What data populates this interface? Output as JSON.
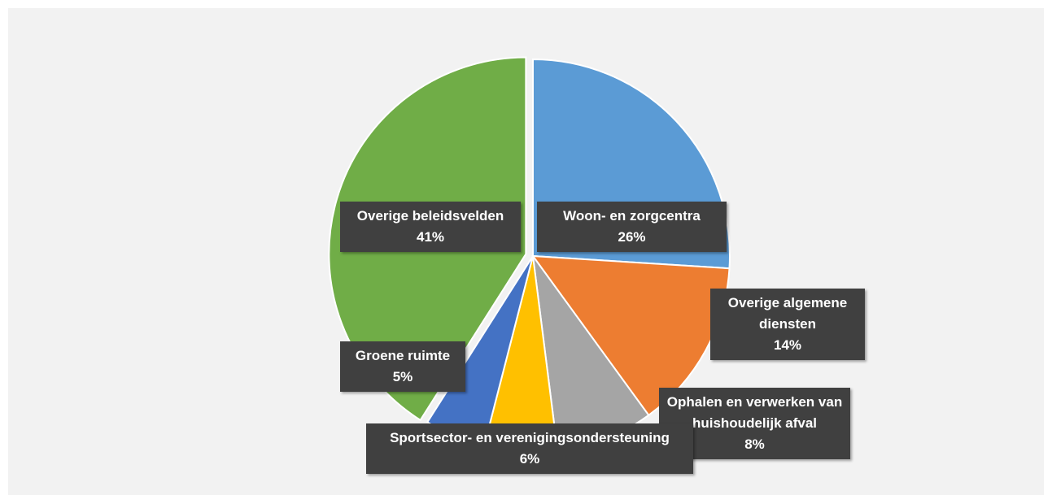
{
  "chart_data": {
    "type": "pie",
    "categories": [
      "Woon- en zorgcentra",
      "Overige algemene diensten",
      "Ophalen en verwerken van huishoudelijk afval",
      "Sportsector- en verenigingsondersteuning",
      "Groene ruimte",
      "Overige beleidsvelden"
    ],
    "values": [
      26,
      14,
      8,
      6,
      5,
      41
    ],
    "value_labels": [
      "26%",
      "14%",
      "8%",
      "6%",
      "5%",
      "41%"
    ],
    "colors": [
      "#5b9bd5",
      "#ed7d31",
      "#a5a5a5",
      "#ffc000",
      "#4472c4",
      "#70ad47"
    ]
  }
}
